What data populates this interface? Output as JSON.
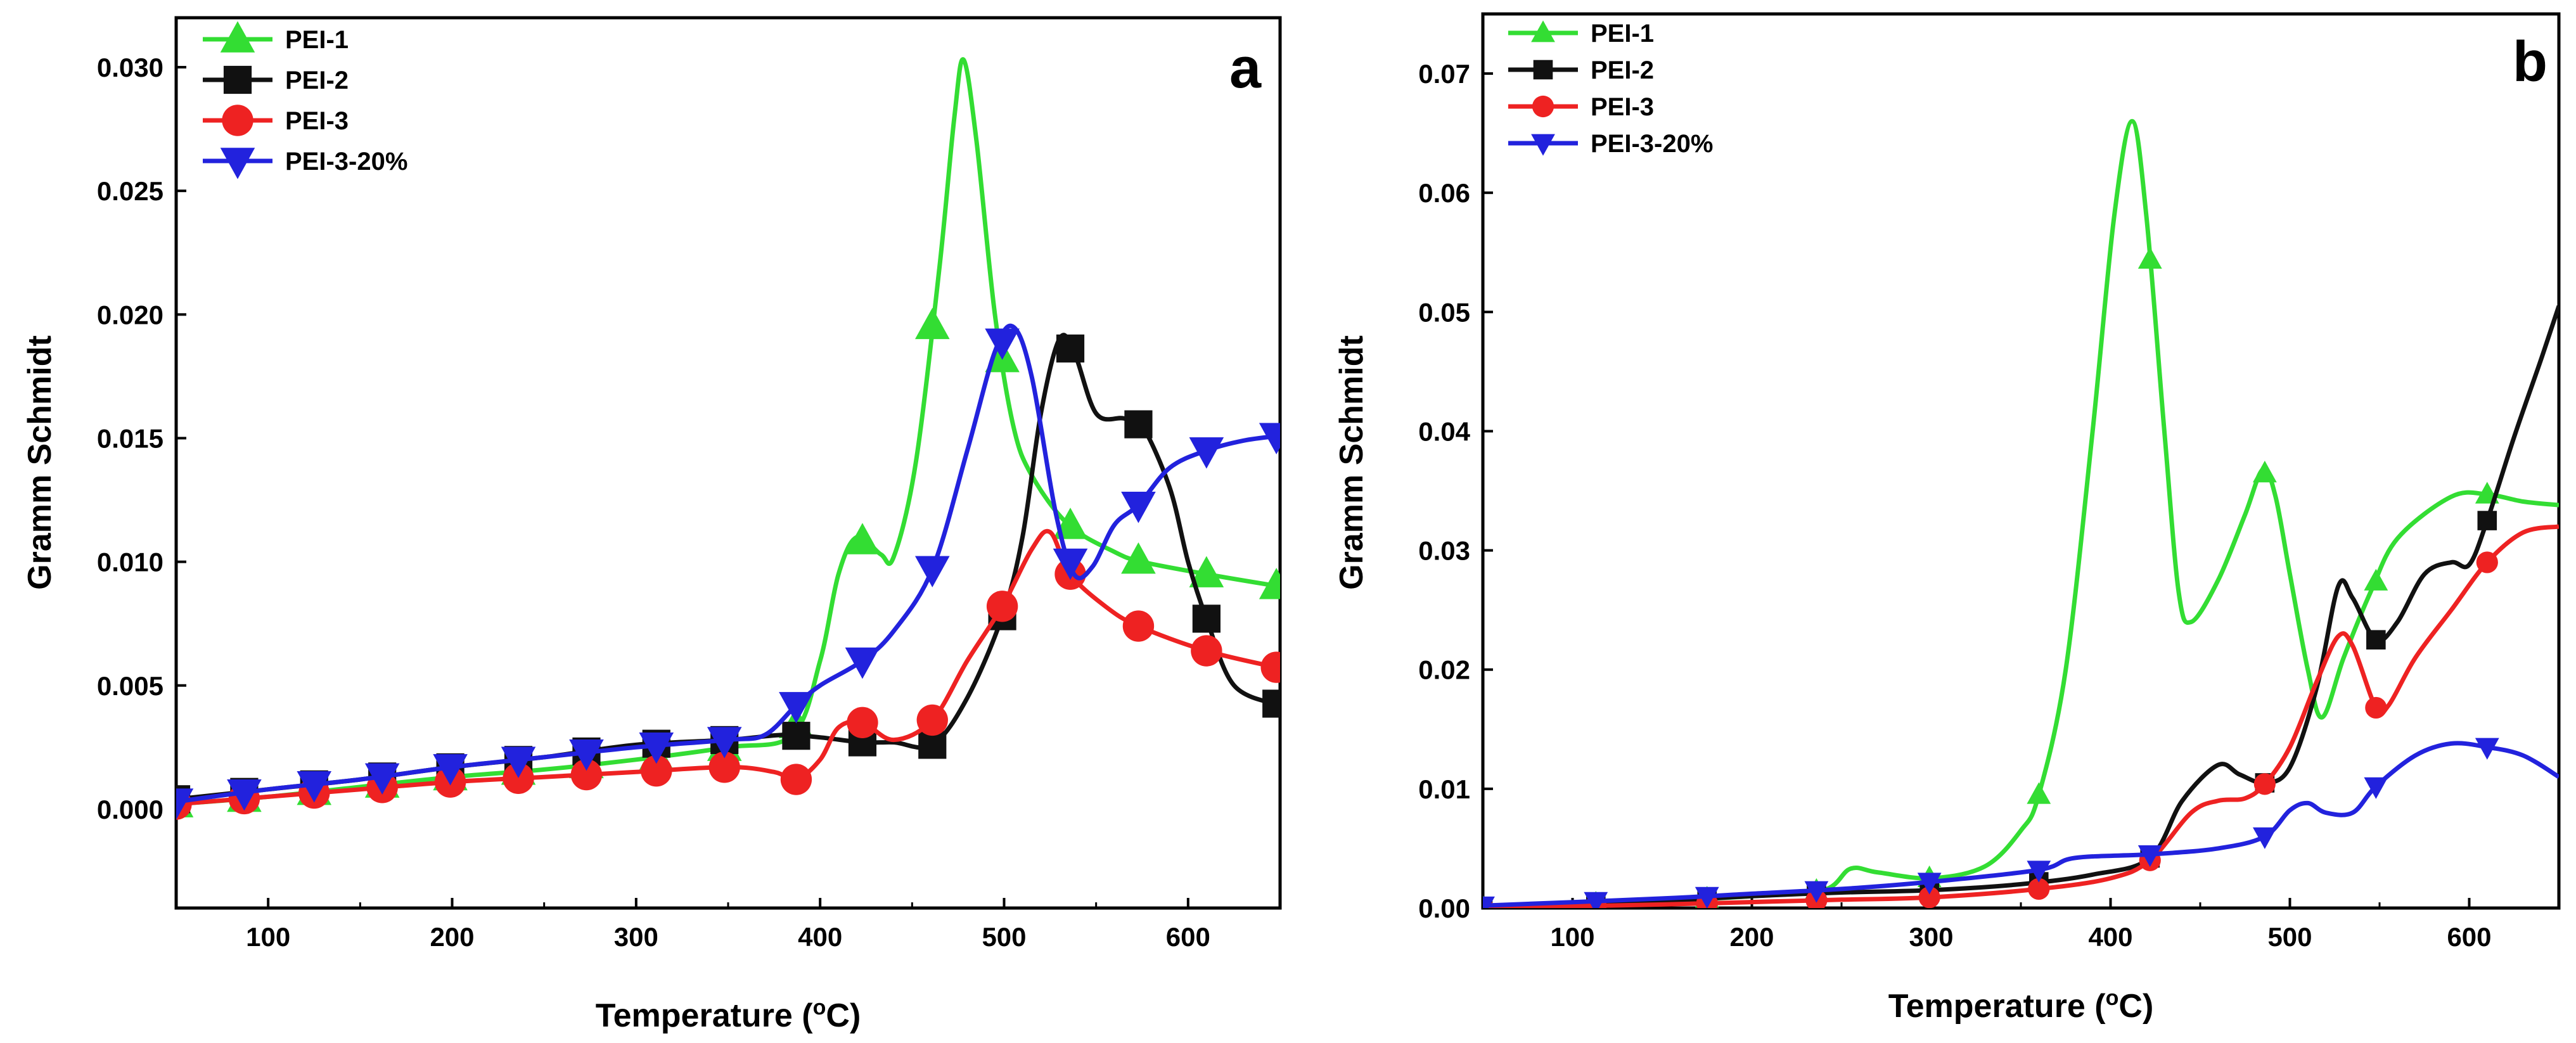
{
  "chart_data": [
    {
      "type": "line",
      "panel_label": "a",
      "xlabel": "Temperature (°C)",
      "ylabel": "Gramm Schmidt",
      "xlim": [
        50,
        650
      ],
      "ylim": [
        -0.004,
        0.032
      ],
      "xticks": [
        "100",
        "200",
        "300",
        "400",
        "500",
        "600"
      ],
      "yticks": [
        "0.000",
        "0.005",
        "0.010",
        "0.015",
        "0.020",
        "0.025",
        "0.030"
      ],
      "legend_position": "top-left",
      "series": [
        {
          "name": "PEI-1",
          "color": "#33dd33",
          "marker": "triangle-up",
          "points": [
            [
              50,
              0.0002
            ],
            [
              100,
              0.0005
            ],
            [
              150,
              0.0009
            ],
            [
              200,
              0.0013
            ],
            [
              250,
              0.0016
            ],
            [
              300,
              0.002
            ],
            [
              350,
              0.0025
            ],
            [
              385,
              0.003
            ],
            [
              400,
              0.006
            ],
            [
              410,
              0.0095
            ],
            [
              420,
              0.011
            ],
            [
              433,
              0.0103
            ],
            [
              440,
              0.0102
            ],
            [
              452,
              0.014
            ],
            [
              465,
              0.022
            ],
            [
              473,
              0.028
            ],
            [
              478,
              0.0303
            ],
            [
              485,
              0.027
            ],
            [
              495,
              0.02
            ],
            [
              505,
              0.0155
            ],
            [
              515,
              0.0135
            ],
            [
              535,
              0.0115
            ],
            [
              560,
              0.0104
            ],
            [
              575,
              0.01
            ],
            [
              610,
              0.0095
            ],
            [
              650,
              0.009
            ]
          ],
          "markers_x": [
            50,
            87,
            125,
            162,
            199,
            236,
            273,
            311,
            348,
            387,
            423,
            461,
            499,
            536,
            573,
            610,
            648
          ]
        },
        {
          "name": "PEI-2",
          "color": "#111111",
          "marker": "square",
          "points": [
            [
              50,
              0.0004
            ],
            [
              100,
              0.0008
            ],
            [
              150,
              0.0012
            ],
            [
              200,
              0.0017
            ],
            [
              250,
              0.0021
            ],
            [
              300,
              0.0026
            ],
            [
              350,
              0.0028
            ],
            [
              380,
              0.003
            ],
            [
              400,
              0.0029
            ],
            [
              423,
              0.0027
            ],
            [
              440,
              0.0027
            ],
            [
              461,
              0.0026
            ],
            [
              480,
              0.0045
            ],
            [
              499,
              0.0078
            ],
            [
              510,
              0.011
            ],
            [
              520,
              0.016
            ],
            [
              530,
              0.019
            ],
            [
              538,
              0.0185
            ],
            [
              550,
              0.016
            ],
            [
              565,
              0.0158
            ],
            [
              575,
              0.0155
            ],
            [
              590,
              0.013
            ],
            [
              600,
              0.01
            ],
            [
              610,
              0.0077
            ],
            [
              625,
              0.005
            ],
            [
              650,
              0.0042
            ]
          ],
          "markers_x": [
            50,
            87,
            125,
            162,
            199,
            236,
            273,
            311,
            348,
            387,
            423,
            461,
            499,
            536,
            573,
            610,
            648
          ]
        },
        {
          "name": "PEI-3",
          "color": "#ee2222",
          "marker": "circle",
          "points": [
            [
              50,
              0.0002
            ],
            [
              100,
              0.0005
            ],
            [
              150,
              0.0008
            ],
            [
              200,
              0.0011
            ],
            [
              250,
              0.0013
            ],
            [
              300,
              0.0015
            ],
            [
              350,
              0.0017
            ],
            [
              375,
              0.0015
            ],
            [
              387,
              0.0012
            ],
            [
              400,
              0.002
            ],
            [
              410,
              0.0033
            ],
            [
              423,
              0.0035
            ],
            [
              440,
              0.0028
            ],
            [
              461,
              0.0036
            ],
            [
              480,
              0.006
            ],
            [
              499,
              0.0082
            ],
            [
              515,
              0.0105
            ],
            [
              525,
              0.0112
            ],
            [
              536,
              0.0095
            ],
            [
              555,
              0.0082
            ],
            [
              573,
              0.0074
            ],
            [
              610,
              0.0064
            ],
            [
              650,
              0.0057
            ]
          ],
          "markers_x": [
            50,
            87,
            125,
            162,
            199,
            236,
            273,
            311,
            348,
            387,
            423,
            461,
            499,
            536,
            573,
            610,
            648
          ]
        },
        {
          "name": "PEI-3-20%",
          "color": "#2222dd",
          "marker": "triangle-down",
          "points": [
            [
              50,
              0.0003
            ],
            [
              100,
              0.0008
            ],
            [
              150,
              0.0012
            ],
            [
              200,
              0.0017
            ],
            [
              250,
              0.0021
            ],
            [
              300,
              0.0025
            ],
            [
              350,
              0.0028
            ],
            [
              370,
              0.003
            ],
            [
              387,
              0.0042
            ],
            [
              400,
              0.005
            ],
            [
              423,
              0.006
            ],
            [
              440,
              0.0072
            ],
            [
              461,
              0.0097
            ],
            [
              480,
              0.0145
            ],
            [
              495,
              0.0185
            ],
            [
              505,
              0.0195
            ],
            [
              515,
              0.0175
            ],
            [
              528,
              0.012
            ],
            [
              538,
              0.0095
            ],
            [
              548,
              0.0098
            ],
            [
              560,
              0.0115
            ],
            [
              573,
              0.0123
            ],
            [
              590,
              0.0138
            ],
            [
              610,
              0.0145
            ],
            [
              630,
              0.0149
            ],
            [
              650,
              0.0151
            ]
          ],
          "markers_x": [
            50,
            87,
            125,
            162,
            199,
            236,
            273,
            311,
            348,
            387,
            423,
            461,
            499,
            536,
            573,
            610,
            648
          ]
        }
      ]
    },
    {
      "type": "line",
      "panel_label": "b",
      "xlabel": "Temperature (°C)",
      "ylabel": "Gramm Schmidt",
      "xlim": [
        50,
        650
      ],
      "ylim": [
        0,
        0.075
      ],
      "xticks": [
        "100",
        "200",
        "300",
        "400",
        "500",
        "600"
      ],
      "yticks": [
        "0.00",
        "0.01",
        "0.02",
        "0.03",
        "0.04",
        "0.05",
        "0.06",
        "0.07"
      ],
      "legend_position": "top-left",
      "series": [
        {
          "name": "PEI-1",
          "color": "#33dd33",
          "marker": "triangle-up",
          "points": [
            [
              50,
              0
            ],
            [
              150,
              0.0006
            ],
            [
              200,
              0.001
            ],
            [
              240,
              0.0015
            ],
            [
              255,
              0.0033
            ],
            [
              270,
              0.003
            ],
            [
              300,
              0.0025
            ],
            [
              330,
              0.0035
            ],
            [
              350,
              0.0065
            ],
            [
              360,
              0.0095
            ],
            [
              375,
              0.02
            ],
            [
              390,
              0.04
            ],
            [
              402,
              0.058
            ],
            [
              412,
              0.066
            ],
            [
              420,
              0.058
            ],
            [
              430,
              0.04
            ],
            [
              438,
              0.0265
            ],
            [
              445,
              0.024
            ],
            [
              460,
              0.0275
            ],
            [
              475,
              0.033
            ],
            [
              485,
              0.0368
            ],
            [
              492,
              0.0345
            ],
            [
              500,
              0.028
            ],
            [
              510,
              0.02
            ],
            [
              518,
              0.016
            ],
            [
              530,
              0.021
            ],
            [
              545,
              0.0265
            ],
            [
              560,
              0.031
            ],
            [
              590,
              0.0345
            ],
            [
              610,
              0.0347
            ],
            [
              630,
              0.0341
            ],
            [
              650,
              0.0338
            ]
          ],
          "markers_x": [
            50,
            113,
            175,
            236,
            299,
            360,
            422,
            486,
            548,
            610
          ]
        },
        {
          "name": "PEI-2",
          "color": "#111111",
          "marker": "square",
          "points": [
            [
              50,
              0
            ],
            [
              150,
              0.0006
            ],
            [
              200,
              0.001
            ],
            [
              250,
              0.0013
            ],
            [
              300,
              0.0015
            ],
            [
              350,
              0.002
            ],
            [
              390,
              0.0028
            ],
            [
              422,
              0.0042
            ],
            [
              440,
              0.009
            ],
            [
              460,
              0.012
            ],
            [
              472,
              0.0112
            ],
            [
              486,
              0.0105
            ],
            [
              500,
              0.0118
            ],
            [
              515,
              0.0185
            ],
            [
              527,
              0.027
            ],
            [
              535,
              0.026
            ],
            [
              548,
              0.0225
            ],
            [
              560,
              0.024
            ],
            [
              575,
              0.028
            ],
            [
              590,
              0.029
            ],
            [
              600,
              0.0288
            ],
            [
              610,
              0.0325
            ],
            [
              625,
              0.0395
            ],
            [
              640,
              0.046
            ],
            [
              650,
              0.0505
            ]
          ],
          "markers_x": [
            50,
            113,
            175,
            236,
            299,
            360,
            422,
            486,
            548,
            610
          ]
        },
        {
          "name": "PEI-3",
          "color": "#ee2222",
          "marker": "circle",
          "points": [
            [
              50,
              0
            ],
            [
              150,
              0.0003
            ],
            [
              200,
              0.0005
            ],
            [
              250,
              0.0007
            ],
            [
              300,
              0.0009
            ],
            [
              360,
              0.0016
            ],
            [
              400,
              0.0025
            ],
            [
              422,
              0.004
            ],
            [
              445,
              0.008
            ],
            [
              460,
              0.009
            ],
            [
              475,
              0.0092
            ],
            [
              486,
              0.0104
            ],
            [
              500,
              0.0135
            ],
            [
              515,
              0.019
            ],
            [
              527,
              0.0228
            ],
            [
              535,
              0.022
            ],
            [
              548,
              0.0168
            ],
            [
              555,
              0.017
            ],
            [
              570,
              0.021
            ],
            [
              590,
              0.025
            ],
            [
              610,
              0.029
            ],
            [
              630,
              0.0315
            ],
            [
              650,
              0.032
            ]
          ],
          "markers_x": [
            50,
            113,
            175,
            236,
            299,
            360,
            422,
            486,
            548,
            610
          ]
        },
        {
          "name": "PEI-3-20%",
          "color": "#2222dd",
          "marker": "triangle-down",
          "points": [
            [
              50,
              0.0002
            ],
            [
              150,
              0.0008
            ],
            [
              200,
              0.0012
            ],
            [
              250,
              0.0016
            ],
            [
              300,
              0.0022
            ],
            [
              360,
              0.0032
            ],
            [
              380,
              0.0042
            ],
            [
              422,
              0.0045
            ],
            [
              460,
              0.005
            ],
            [
              486,
              0.006
            ],
            [
              500,
              0.0082
            ],
            [
              510,
              0.0088
            ],
            [
              520,
              0.008
            ],
            [
              535,
              0.008
            ],
            [
              548,
              0.0102
            ],
            [
              570,
              0.0128
            ],
            [
              590,
              0.0138
            ],
            [
              610,
              0.0135
            ],
            [
              630,
              0.0128
            ],
            [
              650,
              0.011
            ]
          ],
          "markers_x": [
            50,
            113,
            175,
            236,
            299,
            360,
            422,
            486,
            548,
            610
          ]
        }
      ]
    }
  ]
}
